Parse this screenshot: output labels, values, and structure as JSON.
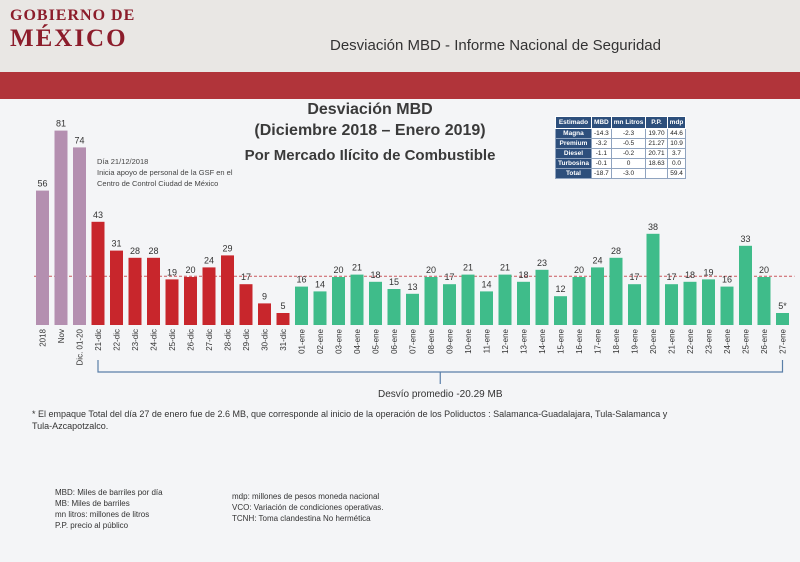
{
  "header": {
    "logo_line1": "GOBIERNO DE",
    "logo_line2": "MÉXICO",
    "title": "Desviación MBD - Informe Nacional de Seguridad"
  },
  "colors": {
    "brand_red": "#b1343a",
    "purple": "#b48fb0",
    "red_bar": "#c8262c",
    "green_bar": "#3fbc8a"
  },
  "chart_data": {
    "type": "bar",
    "title": "Desviación MBD",
    "subtitle": "(Diciembre 2018 – Enero 2019)",
    "subtitle2": "Por Mercado Ilícito de Combustible",
    "categories": [
      "2018",
      "Nov",
      "Dic. 01-20",
      "21-dic",
      "22-dic",
      "23-dic",
      "24-dic",
      "25-dic",
      "26-dic",
      "27-dic",
      "28-dic",
      "29-dic",
      "30-dic",
      "31-dic",
      "01-ene",
      "02-ene",
      "03-ene",
      "04-ene",
      "05-ene",
      "06-ene",
      "07-ene",
      "08-ene",
      "09-ene",
      "10-ene",
      "11-ene",
      "12-ene",
      "13-ene",
      "14-ene",
      "15-ene",
      "16-ene",
      "17-ene",
      "18-ene",
      "19-ene",
      "20-ene",
      "21-ene",
      "22-ene",
      "23-ene",
      "24-ene",
      "25-ene",
      "26-ene",
      "27-ene"
    ],
    "values": [
      56,
      81,
      74,
      43,
      31,
      28,
      28,
      19,
      20,
      24,
      29,
      17,
      9,
      5,
      16,
      14,
      20,
      21,
      18,
      15,
      13,
      20,
      17,
      21,
      14,
      21,
      18,
      23,
      12,
      20,
      24,
      28,
      17,
      38,
      17,
      18,
      19,
      16,
      33,
      20,
      5
    ],
    "labels": [
      "56",
      "81",
      "74",
      "43",
      "31",
      "28",
      "28",
      "19",
      "20",
      "24",
      "29",
      "17",
      "9",
      "5",
      "16",
      "14",
      "20",
      "21",
      "18",
      "15",
      "13",
      "20",
      "17",
      "21",
      "14",
      "21",
      "18",
      "23",
      "12",
      "20",
      "24",
      "28",
      "17",
      "38",
      "17",
      "18",
      "19",
      "16",
      "33",
      "20",
      "5*"
    ],
    "groups": [
      "purple",
      "purple",
      "purple",
      "red",
      "red",
      "red",
      "red",
      "red",
      "red",
      "red",
      "red",
      "red",
      "red",
      "red",
      "green",
      "green",
      "green",
      "green",
      "green",
      "green",
      "green",
      "green",
      "green",
      "green",
      "green",
      "green",
      "green",
      "green",
      "green",
      "green",
      "green",
      "green",
      "green",
      "green",
      "green",
      "green",
      "green",
      "green",
      "green",
      "green",
      "green"
    ],
    "ylim": [
      0,
      90
    ],
    "average_line": 20.29,
    "average_label": "Desvío promedio -20.29 MB",
    "annotation": [
      "Día 21/12/2018",
      "Inicia apoyo de personal de la GSF en el",
      "Centro de Control Ciudad de México"
    ]
  },
  "table": {
    "headers": [
      "Estimado",
      "MBD",
      "mn Litros",
      "P.P.",
      "mdp"
    ],
    "rows": [
      [
        "Magna",
        "-14.3",
        "-2.3",
        "19.70",
        "44.6"
      ],
      [
        "Premium",
        "-3.2",
        "-0.5",
        "21.27",
        "10.9"
      ],
      [
        "Diesel",
        "-1.1",
        "-0.2",
        "20.71",
        "3.7"
      ],
      [
        "Turbosina",
        "-0.1",
        "0",
        "18.63",
        "0.0"
      ],
      [
        "Total",
        "-18.7",
        "-3.0",
        "",
        "59.4"
      ]
    ]
  },
  "footnote": "* El empaque Total del día 27 de enero fue de 2.6 MB, que corresponde al inicio de la operación de los Poliductos : Salamanca-Guadalajara, Tula-Salamanca y Tula-Azcapotzalco.",
  "legend_left": [
    "MBD: Miles de barriles por día",
    "MB: Miles de barriles",
    "mn litros: millones de litros",
    "P.P. precio al público"
  ],
  "legend_right": [
    "mdp: millones de pesos moneda nacional",
    "VCO: Variación de condiciones operativas.",
    "TCNH: Toma clandestina No hermética"
  ]
}
